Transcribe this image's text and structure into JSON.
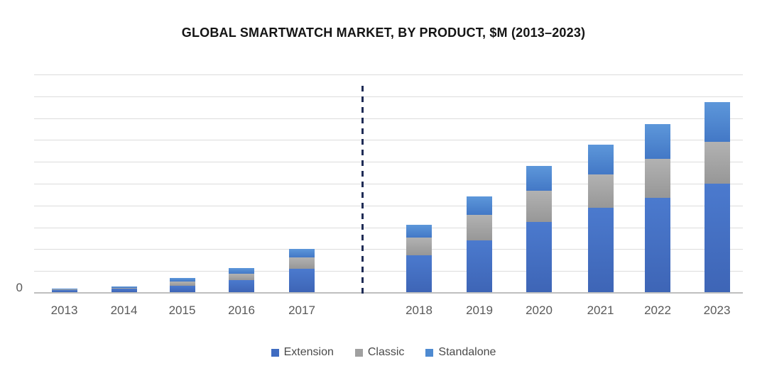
{
  "title": "GLOBAL SMARTWATCH MARKET, BY PRODUCT, $M (2013–2023)",
  "y_axis": {
    "zero_label": "0"
  },
  "chart_data": {
    "type": "bar",
    "stacked": true,
    "title": "GLOBAL SMARTWATCH MARKET, BY PRODUCT, $M (2013–2023)",
    "categories": [
      "2013",
      "2014",
      "2015",
      "2016",
      "2017",
      "2018",
      "2019",
      "2020",
      "2021",
      "2022",
      "2023"
    ],
    "series": [
      {
        "name": "Extension",
        "color": "#4472c4",
        "values": [
          0.09,
          0.16,
          0.3,
          0.56,
          1.08,
          1.68,
          2.38,
          3.22,
          3.86,
          4.32,
          4.98
        ]
      },
      {
        "name": "Classic",
        "color": "#a5a5a5",
        "values": [
          0.02,
          0.04,
          0.21,
          0.3,
          0.52,
          0.81,
          1.16,
          1.43,
          1.51,
          1.79,
          1.92
        ]
      },
      {
        "name": "Standalone",
        "color": "#5b9bd5",
        "values": [
          0.03,
          0.05,
          0.17,
          0.27,
          0.38,
          0.59,
          0.86,
          1.14,
          1.35,
          1.59,
          1.82
        ]
      }
    ],
    "totals": [
      0.14,
      0.25,
      0.68,
      1.13,
      1.98,
      3.08,
      4.4,
      5.79,
      6.72,
      7.7,
      8.72
    ],
    "values_unit": "gridline intervals (y-axis unlabeled except 0; values in $M proportional to one gridline step)",
    "xlabel": "",
    "ylabel": "",
    "ylim": [
      0,
      10
    ],
    "gridline_count": 10,
    "grid": true,
    "y_tick_labels_visible": [
      "0"
    ],
    "legend_position": "bottom",
    "annotations": [
      {
        "type": "vertical-dashed-line",
        "between": [
          "2017",
          "2018"
        ],
        "color": "#1f2c56",
        "meaning": "separator between columns 2017 and 2018"
      }
    ]
  },
  "legend": {
    "items": [
      {
        "label": "Extension",
        "color": "#3f6cc1"
      },
      {
        "label": "Classic",
        "color": "#a0a0a0"
      },
      {
        "label": "Standalone",
        "color": "#4e8ad1"
      }
    ]
  }
}
